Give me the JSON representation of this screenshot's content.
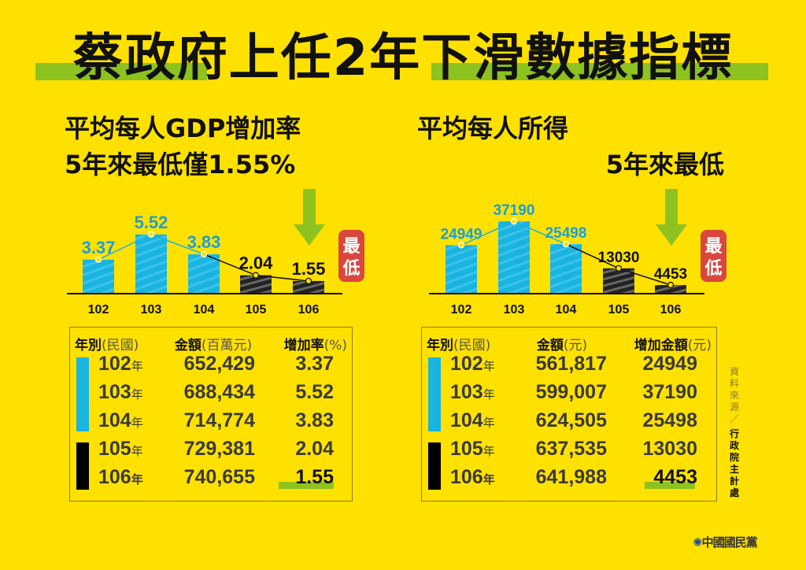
{
  "title": "蔡政府上任2年下滑數據指標",
  "left": {
    "subtitle1": "平均每人GDP增加率",
    "subtitle2": "5年來最低僅1.55%",
    "badge": "最低",
    "table": {
      "h_year": "年別",
      "h_year_unit": "(民國)",
      "h_amount": "金額",
      "h_amount_unit": "(百萬元)",
      "h_rate": "增加率",
      "h_rate_unit": "(%)",
      "rows": [
        {
          "year": "102",
          "suffix": "年",
          "amount": "652,429",
          "rate": "3.37"
        },
        {
          "year": "103",
          "suffix": "年",
          "amount": "688,434",
          "rate": "5.52"
        },
        {
          "year": "104",
          "suffix": "年",
          "amount": "714,774",
          "rate": "3.83"
        },
        {
          "year": "105",
          "suffix": "年",
          "amount": "729,381",
          "rate": "2.04"
        },
        {
          "year": "106",
          "suffix": "年",
          "amount": "740,655",
          "rate": "1.55"
        }
      ]
    }
  },
  "right": {
    "subtitle1": "平均每人所得",
    "subtitle2": "5年來最低",
    "badge": "最低",
    "table": {
      "h_year": "年別",
      "h_year_unit": "(民國)",
      "h_amount": "金額",
      "h_amount_unit": "(元)",
      "h_rate": "增加金額",
      "h_rate_unit": "(元)",
      "rows": [
        {
          "year": "102",
          "suffix": "年",
          "amount": "561,817",
          "rate": "24949"
        },
        {
          "year": "103",
          "suffix": "年",
          "amount": "599,007",
          "rate": "37190"
        },
        {
          "year": "104",
          "suffix": "年",
          "amount": "624,505",
          "rate": "25498"
        },
        {
          "year": "105",
          "suffix": "年",
          "amount": "637,535",
          "rate": "13030"
        },
        {
          "year": "106",
          "suffix": "年",
          "amount": "641,988",
          "rate": "4453"
        }
      ]
    }
  },
  "source_label": "資料來源／",
  "source": "行政院主計處",
  "logo": "中國國民黨",
  "colors": {
    "bg": "#FFE100",
    "blue": "#19B4E0",
    "black": "#222222",
    "green": "#8DC21F",
    "red": "#D9473E"
  },
  "chart_data": [
    {
      "type": "bar",
      "title": "平均每人GDP增加率",
      "categories": [
        "102",
        "103",
        "104",
        "105",
        "106"
      ],
      "values": [
        3.37,
        5.52,
        3.83,
        2.04,
        1.55
      ],
      "labels": [
        "3.37",
        "5.52",
        "3.83",
        "2.04",
        "1.55"
      ],
      "ylabel": "%"
    },
    {
      "type": "bar",
      "title": "平均每人所得增加金額",
      "categories": [
        "102",
        "103",
        "104",
        "105",
        "106"
      ],
      "values": [
        24949,
        37190,
        25498,
        13030,
        4453
      ],
      "labels": [
        "24949",
        "37190",
        "25498",
        "13030",
        "4453"
      ],
      "ylabel": "元"
    }
  ]
}
